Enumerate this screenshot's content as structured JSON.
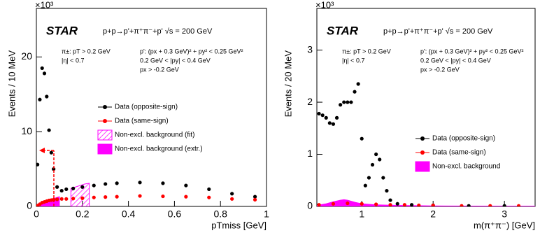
{
  "chart_data": [
    {
      "type": "scatter",
      "logo": "STAR",
      "title": "p+p→p'+π⁺π⁻+p'   √s = 200 GeV",
      "cuts_left": [
        "π±:  pT > 0.2 GeV",
        "|η| < 0.7"
      ],
      "cuts_right": [
        "p':  (px + 0.3 GeV)² + py² < 0.25 GeV²",
        "0.2 GeV < |py| < 0.4 GeV",
        "px > -0.2 GeV"
      ],
      "exponent": "×10³",
      "ylabel": "Events / 10 MeV",
      "xlabel": "pTmiss [GeV]",
      "xlim": [
        0,
        1
      ],
      "ylim": [
        0,
        26.5
      ],
      "xticks": [
        0,
        0.2,
        0.4,
        0.6,
        0.8,
        1
      ],
      "yticks": [
        0,
        10,
        20
      ],
      "series": [
        {
          "name": "Data (opposite-sign)",
          "color": "#000000",
          "kind": "points",
          "x": [
            0.005,
            0.015,
            0.025,
            0.035,
            0.045,
            0.055,
            0.065,
            0.075,
            0.09,
            0.11,
            0.13,
            0.16,
            0.2,
            0.25,
            0.3,
            0.35,
            0.45,
            0.55,
            0.65,
            0.75,
            0.85,
            0.95
          ],
          "values": [
            5.6,
            14.3,
            18.5,
            17.8,
            14.7,
            10.2,
            7.2,
            5.0,
            2.6,
            2.1,
            2.3,
            2.4,
            2.6,
            2.8,
            3.0,
            3.1,
            3.2,
            3.1,
            2.8,
            2.3,
            1.7,
            1.3
          ]
        },
        {
          "name": "Data (same-sign)",
          "color": "#ff0000",
          "kind": "points",
          "x": [
            0.005,
            0.015,
            0.025,
            0.035,
            0.045,
            0.055,
            0.065,
            0.075,
            0.09,
            0.11,
            0.13,
            0.16,
            0.2,
            0.25,
            0.3,
            0.35,
            0.45,
            0.55,
            0.65,
            0.75,
            0.85,
            0.95
          ],
          "values": [
            0.1,
            0.3,
            0.5,
            0.6,
            0.7,
            0.8,
            0.85,
            0.9,
            0.95,
            1.0,
            1.0,
            1.05,
            1.1,
            1.2,
            1.25,
            1.3,
            1.4,
            1.35,
            1.3,
            1.2,
            1.0,
            0.9
          ]
        },
        {
          "name": "Non-excl. background (fit)",
          "color": "#ff00ff",
          "kind": "area",
          "hatch": true,
          "x": [
            0.15,
            0.17,
            0.19,
            0.21,
            0.23
          ],
          "values": [
            2.4,
            2.6,
            2.8,
            3.0,
            3.1
          ]
        },
        {
          "name": "Non-excl. background (extr.)",
          "color": "#ff00ff",
          "kind": "area",
          "hatch": false,
          "x": [
            0,
            0.02,
            0.04,
            0.06,
            0.08,
            0.1
          ],
          "values": [
            0.2,
            0.5,
            0.7,
            0.9,
            1.1,
            1.3
          ]
        }
      ]
    },
    {
      "type": "scatter",
      "logo": "STAR",
      "title": "p+p→p'+π⁺π⁻+p'   √s = 200 GeV",
      "cuts_left": [
        "π±:  pT > 0.2 GeV",
        "|η| < 0.7"
      ],
      "cuts_right": [
        "p':  (px + 0.3 GeV)² + py² < 0.25 GeV²",
        "0.2 GeV < |py| < 0.4 GeV",
        "px > -0.2 GeV"
      ],
      "exponent": "×10³",
      "ylabel": "Events / 20 MeV",
      "xlabel": "m(π⁺π⁻) [GeV]",
      "xlim": [
        0.37,
        3.43
      ],
      "ylim": [
        0,
        3.8
      ],
      "xticks": [
        1,
        2,
        3
      ],
      "yticks": [
        0,
        1,
        2,
        3
      ],
      "series": [
        {
          "name": "Data (opposite-sign)",
          "color": "#000000",
          "kind": "points",
          "x": [
            0.4,
            0.45,
            0.5,
            0.55,
            0.6,
            0.65,
            0.7,
            0.75,
            0.8,
            0.85,
            0.9,
            0.95,
            1.0,
            1.05,
            1.1,
            1.15,
            1.2,
            1.25,
            1.3,
            1.35,
            1.4,
            1.5,
            1.7,
            2.0,
            2.5,
            3.0
          ],
          "values": [
            1.78,
            1.75,
            1.7,
            1.6,
            1.58,
            1.7,
            1.95,
            2.0,
            2.0,
            2.0,
            2.2,
            2.35,
            1.3,
            0.4,
            0.55,
            0.8,
            1.0,
            0.9,
            0.55,
            0.3,
            0.12,
            0.05,
            0.03,
            0.02,
            0.01,
            0.01
          ]
        },
        {
          "name": "Data (same-sign)",
          "color": "#ff0000",
          "kind": "points",
          "x": [
            0.4,
            0.6,
            0.8,
            1.0,
            1.2,
            1.4,
            1.6,
            1.8,
            2.0,
            2.4,
            2.8,
            3.2
          ],
          "values": [
            0.03,
            0.05,
            0.06,
            0.05,
            0.04,
            0.03,
            0.03,
            0.02,
            0.02,
            0.01,
            0.01,
            0.01
          ]
        },
        {
          "name": "Non-excl. background",
          "color": "#ff00ff",
          "kind": "area",
          "hatch": false,
          "x": [
            0.37,
            0.5,
            0.6,
            0.7,
            0.75,
            0.8,
            0.9,
            1.0,
            1.2,
            1.5,
            2.0,
            3.0,
            3.43
          ],
          "values": [
            0.02,
            0.05,
            0.09,
            0.12,
            0.13,
            0.12,
            0.08,
            0.05,
            0.03,
            0.02,
            0.01,
            0.005,
            0.005
          ]
        }
      ]
    }
  ]
}
